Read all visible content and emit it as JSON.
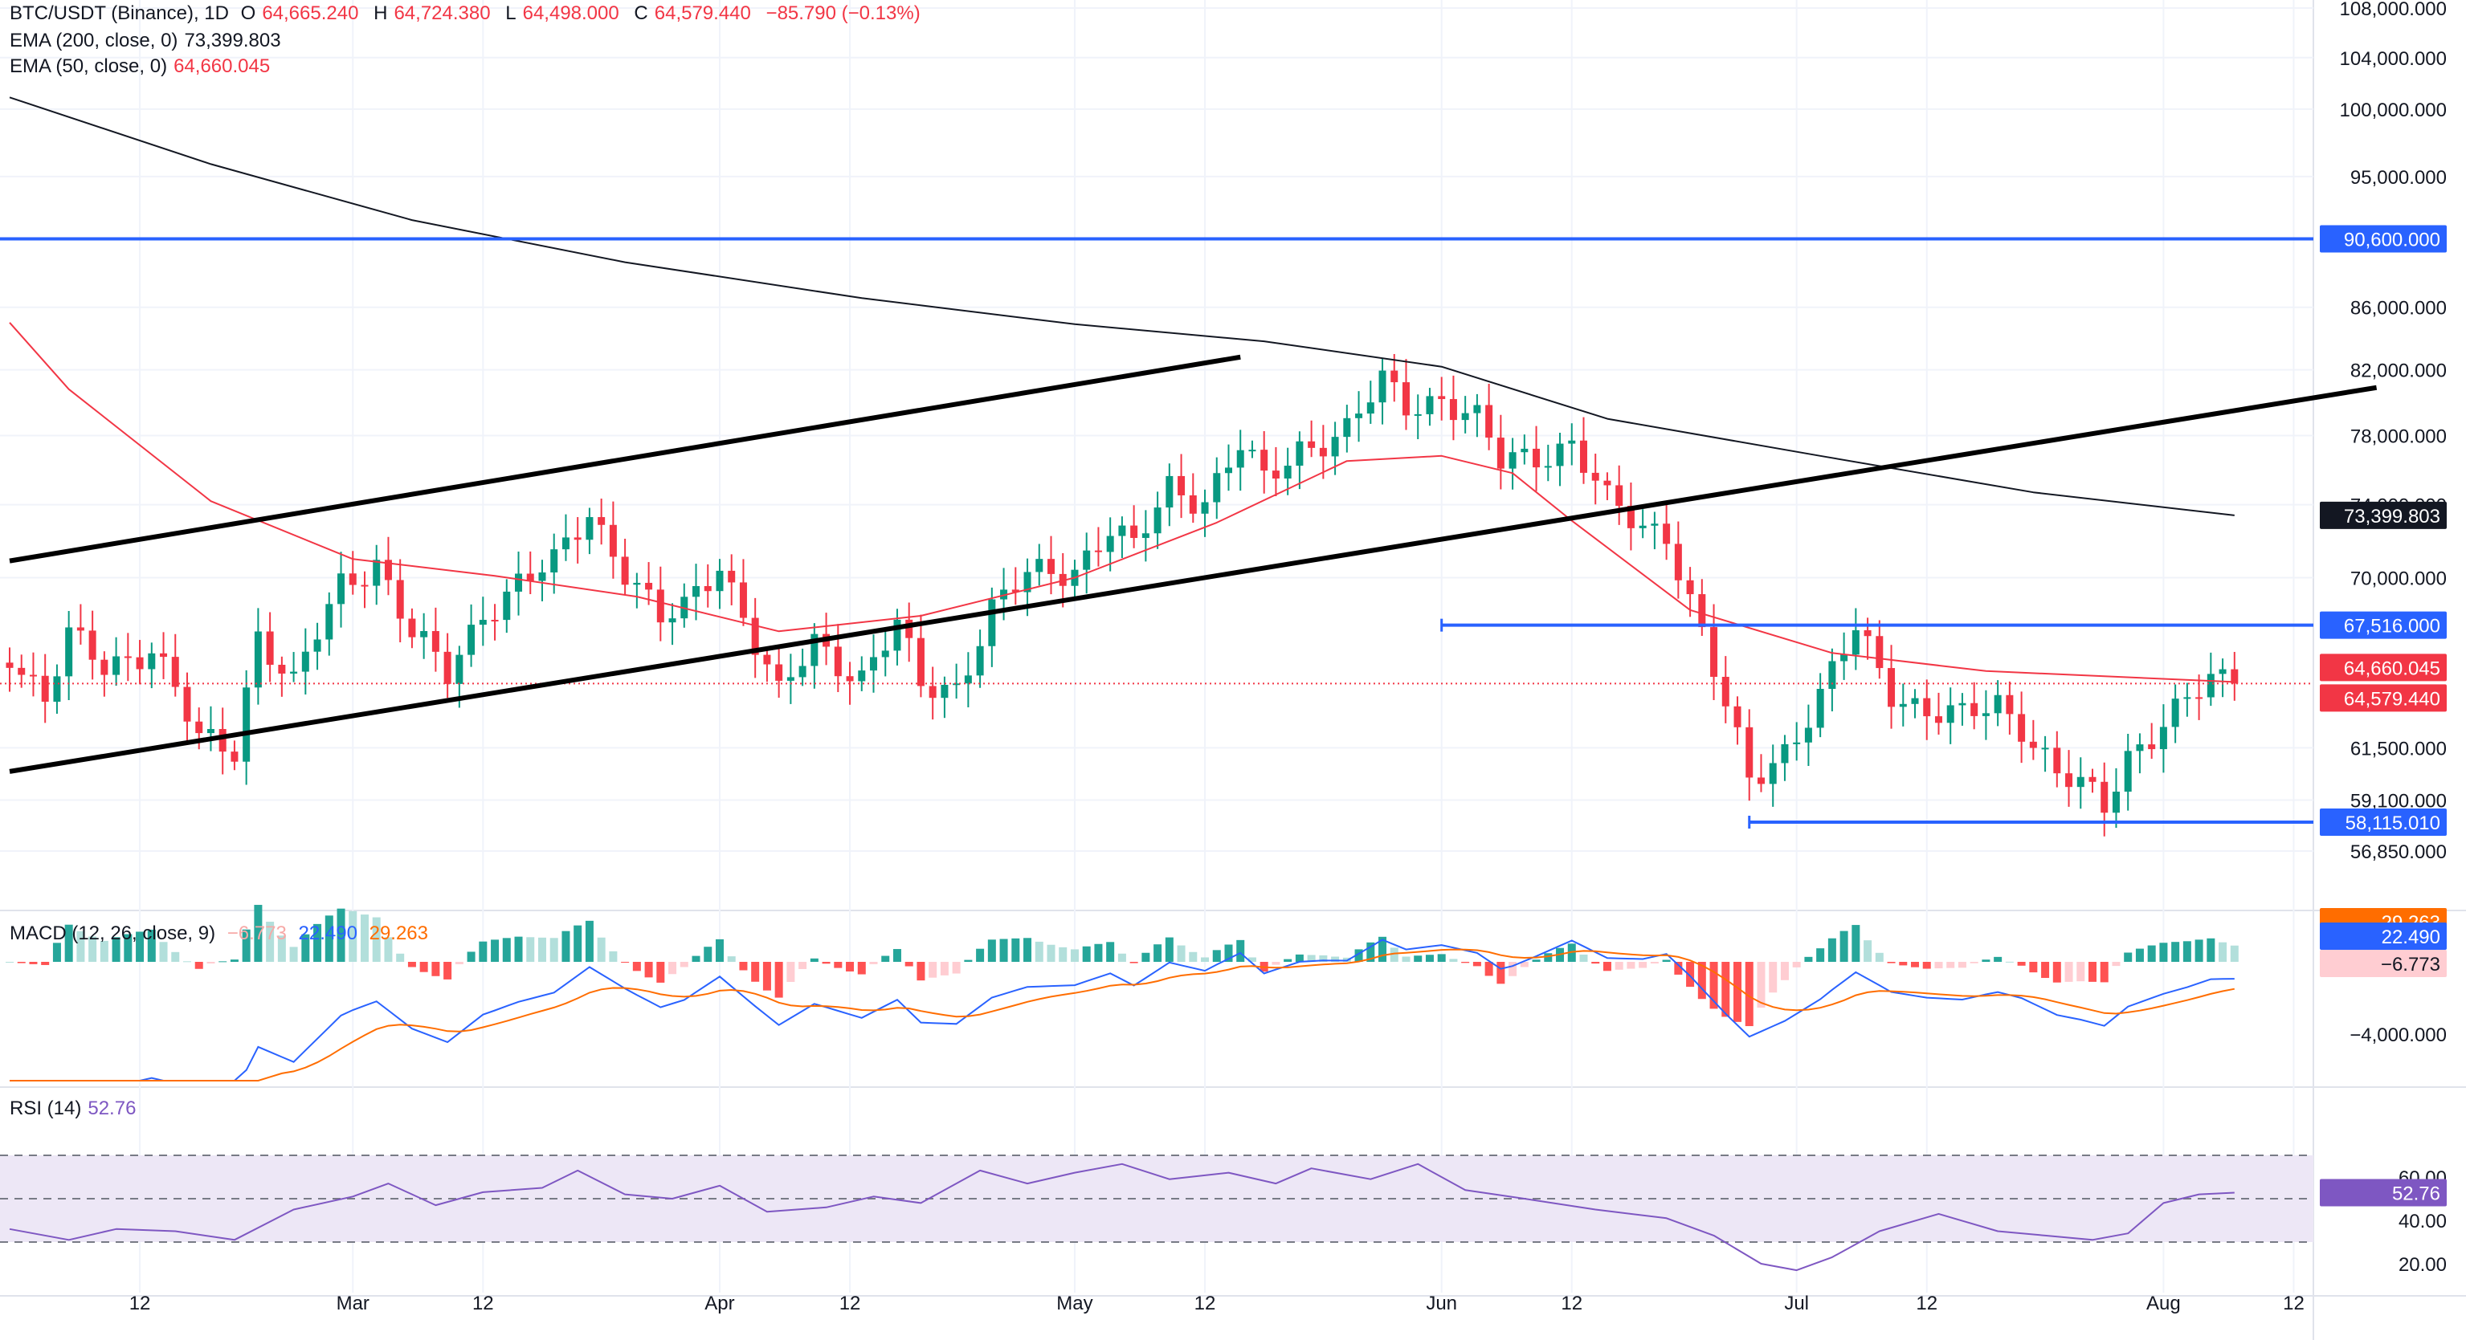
{
  "legend": {
    "symbol": "BTC/USDT (Binance), 1D",
    "o_label": "O",
    "o_value": "64,665.240",
    "h_label": "H",
    "h_value": "64,724.380",
    "l_label": "L",
    "l_value": "64,498.000",
    "c_label": "C",
    "c_value": "64,579.440",
    "change": "−85.790 (−0.13%)",
    "ema200_label": "EMA (200, close, 0)",
    "ema200_value": "73,399.803",
    "ema50_label": "EMA (50, close, 0)",
    "ema50_value": "64,660.045",
    "macd_label": "MACD (12, 26, close, 9)",
    "macd_hist": "−6.773",
    "macd_line": "22.490",
    "macd_signal": "29.263",
    "rsi_label": "RSI (14)",
    "rsi_value": "52.76"
  },
  "colors": {
    "up": "#089981",
    "down": "#f23645",
    "ema200": "#131722",
    "ema50": "#f23645",
    "hline": "#2962ff",
    "macd": "#2962ff",
    "signal": "#ff6d00",
    "rsi": "#7e57c2",
    "rsi_band": "#ede7f6",
    "grid": "#f0f3fa"
  },
  "chart_data": [
    {
      "type": "candlestick",
      "title": "BTC/USDT (Binance), 1D",
      "y_axis": {
        "scale": "log",
        "ylim": [
          56000,
          110000
        ],
        "tick_labels": [
          "108,000.000",
          "104,000.000",
          "100,000.000",
          "95,000.000",
          "86,000.000",
          "82,000.000",
          "78,000.000",
          "74,000.000",
          "70,000.000",
          "61,500.000",
          "59,100.000",
          "56,850.000"
        ],
        "tick_values": [
          108000,
          104000,
          100000,
          95000,
          86000,
          82000,
          78000,
          74000,
          70000,
          61500,
          59100,
          56850
        ]
      },
      "x_axis": {
        "tick_labels": [
          "12",
          "Mar",
          "12",
          "Apr",
          "12",
          "May",
          "12",
          "Jun",
          "12",
          "Jul",
          "12",
          "Aug",
          "12"
        ],
        "tick_dates": [
          "2024-02-12",
          "2024-03-01",
          "2024-03-12",
          "2024-04-01",
          "2024-04-12",
          "2024-05-01",
          "2024-05-12",
          "2024-06-01",
          "2024-06-12",
          "2024-07-01",
          "2024-07-12",
          "2024-08-01",
          "2024-08-12"
        ],
        "first_date": "2024-02-01",
        "last_date": "2024-08-07",
        "right_date": "2024-08-19"
      },
      "close_series": [
        {
          "date": "2024-02-01",
          "value": 66300
        },
        {
          "date": "2024-02-04",
          "value": 63800
        },
        {
          "date": "2024-02-06",
          "value": 66800
        },
        {
          "date": "2024-02-09",
          "value": 65400
        },
        {
          "date": "2024-02-13",
          "value": 66500
        },
        {
          "date": "2024-02-15",
          "value": 64200
        },
        {
          "date": "2024-02-17",
          "value": 61700
        },
        {
          "date": "2024-02-20",
          "value": 61500
        },
        {
          "date": "2024-02-22",
          "value": 67200
        },
        {
          "date": "2024-02-25",
          "value": 64400
        },
        {
          "date": "2024-02-29",
          "value": 69600
        },
        {
          "date": "2024-03-03",
          "value": 71000
        },
        {
          "date": "2024-03-06",
          "value": 67000
        },
        {
          "date": "2024-03-09",
          "value": 64900
        },
        {
          "date": "2024-03-12",
          "value": 68300
        },
        {
          "date": "2024-03-15",
          "value": 69700
        },
        {
          "date": "2024-03-18",
          "value": 70600
        },
        {
          "date": "2024-03-21",
          "value": 73700
        },
        {
          "date": "2024-03-24",
          "value": 70500
        },
        {
          "date": "2024-03-27",
          "value": 67600
        },
        {
          "date": "2024-03-29",
          "value": 68300
        },
        {
          "date": "2024-04-01",
          "value": 71000
        },
        {
          "date": "2024-04-04",
          "value": 66600
        },
        {
          "date": "2024-04-06",
          "value": 63800
        },
        {
          "date": "2024-04-09",
          "value": 66700
        },
        {
          "date": "2024-04-13",
          "value": 64900
        },
        {
          "date": "2024-04-16",
          "value": 67400
        },
        {
          "date": "2024-04-18",
          "value": 64400
        },
        {
          "date": "2024-04-21",
          "value": 64500
        },
        {
          "date": "2024-04-24",
          "value": 68300
        },
        {
          "date": "2024-04-27",
          "value": 70000
        },
        {
          "date": "2024-05-01",
          "value": 70600
        },
        {
          "date": "2024-05-04",
          "value": 72700
        },
        {
          "date": "2024-05-06",
          "value": 71400
        },
        {
          "date": "2024-05-09",
          "value": 75000
        },
        {
          "date": "2024-05-12",
          "value": 74400
        },
        {
          "date": "2024-05-15",
          "value": 77400
        },
        {
          "date": "2024-05-17",
          "value": 75100
        },
        {
          "date": "2024-05-20",
          "value": 77300
        },
        {
          "date": "2024-05-22",
          "value": 77900
        },
        {
          "date": "2024-05-24",
          "value": 78300
        },
        {
          "date": "2024-05-27",
          "value": 81100
        },
        {
          "date": "2024-05-29",
          "value": 79800
        },
        {
          "date": "2024-06-01",
          "value": 80400
        },
        {
          "date": "2024-06-04",
          "value": 78800
        },
        {
          "date": "2024-06-06",
          "value": 76300
        },
        {
          "date": "2024-06-09",
          "value": 76900
        },
        {
          "date": "2024-06-12",
          "value": 77600
        },
        {
          "date": "2024-06-15",
          "value": 74000
        },
        {
          "date": "2024-06-18",
          "value": 72700
        },
        {
          "date": "2024-06-20",
          "value": 72600
        },
        {
          "date": "2024-06-23",
          "value": 67000
        },
        {
          "date": "2024-06-25",
          "value": 63300
        },
        {
          "date": "2024-06-27",
          "value": 59900
        },
        {
          "date": "2024-06-30",
          "value": 61500
        },
        {
          "date": "2024-07-03",
          "value": 63900
        },
        {
          "date": "2024-07-06",
          "value": 67200
        },
        {
          "date": "2024-07-09",
          "value": 64300
        },
        {
          "date": "2024-07-12",
          "value": 63300
        },
        {
          "date": "2024-07-15",
          "value": 62800
        },
        {
          "date": "2024-07-18",
          "value": 63600
        },
        {
          "date": "2024-07-20",
          "value": 62700
        },
        {
          "date": "2024-07-23",
          "value": 60300
        },
        {
          "date": "2024-07-25",
          "value": 59600
        },
        {
          "date": "2024-07-27",
          "value": 58700
        },
        {
          "date": "2024-07-29",
          "value": 61200
        },
        {
          "date": "2024-08-01",
          "value": 62800
        },
        {
          "date": "2024-08-03",
          "value": 63600
        },
        {
          "date": "2024-08-05",
          "value": 64600
        },
        {
          "date": "2024-08-07",
          "value": 64579.44
        }
      ],
      "ema200": [
        {
          "date": "2024-02-01",
          "value": 100900
        },
        {
          "date": "2024-02-18",
          "value": 95900
        },
        {
          "date": "2024-03-06",
          "value": 91900
        },
        {
          "date": "2024-03-24",
          "value": 89000
        },
        {
          "date": "2024-04-13",
          "value": 86600
        },
        {
          "date": "2024-05-01",
          "value": 84900
        },
        {
          "date": "2024-05-17",
          "value": 83800
        },
        {
          "date": "2024-06-01",
          "value": 82200
        },
        {
          "date": "2024-06-15",
          "value": 79000
        },
        {
          "date": "2024-07-03",
          "value": 76800
        },
        {
          "date": "2024-07-21",
          "value": 74700
        },
        {
          "date": "2024-08-07",
          "value": 73399.803
        }
      ],
      "ema50": [
        {
          "date": "2024-02-01",
          "value": 85000
        },
        {
          "date": "2024-02-06",
          "value": 80800
        },
        {
          "date": "2024-02-18",
          "value": 74200
        },
        {
          "date": "2024-03-01",
          "value": 71000
        },
        {
          "date": "2024-03-13",
          "value": 70100
        },
        {
          "date": "2024-03-25",
          "value": 69000
        },
        {
          "date": "2024-04-06",
          "value": 67200
        },
        {
          "date": "2024-04-18",
          "value": 68000
        },
        {
          "date": "2024-05-01",
          "value": 70000
        },
        {
          "date": "2024-05-13",
          "value": 73000
        },
        {
          "date": "2024-05-24",
          "value": 76500
        },
        {
          "date": "2024-06-01",
          "value": 76800
        },
        {
          "date": "2024-06-07",
          "value": 75800
        },
        {
          "date": "2024-06-12",
          "value": 73100
        },
        {
          "date": "2024-06-22",
          "value": 68300
        },
        {
          "date": "2024-07-04",
          "value": 66100
        },
        {
          "date": "2024-07-17",
          "value": 65200
        },
        {
          "date": "2024-08-07",
          "value": 64660.045
        }
      ],
      "trendlines": [
        {
          "from": {
            "date": "2024-02-01",
            "value": 70900
          },
          "to": {
            "date": "2024-05-15",
            "value": 82800
          }
        },
        {
          "from": {
            "date": "2024-02-01",
            "value": 60400
          },
          "to": {
            "date": "2024-08-19",
            "value": 80900
          }
        }
      ],
      "horizontal_levels": [
        {
          "value": 90600,
          "label": "90,600.000",
          "from_date": "2024-02-01"
        },
        {
          "value": 67516,
          "label": "67,516.000",
          "from_date": "2024-06-01"
        },
        {
          "value": 58115.01,
          "label": "58,115.010",
          "from_date": "2024-06-27"
        }
      ],
      "price_labels": [
        {
          "value": 73399.803,
          "label": "73,399.803",
          "kind": "ema200"
        },
        {
          "value": 64660.045,
          "label": "64,660.045",
          "kind": "ema50"
        },
        {
          "value": 64579.44,
          "label": "64,579.440",
          "kind": "last"
        }
      ]
    },
    {
      "type": "bar+line",
      "title": "MACD (12, 26, close, 9)",
      "y_axis": {
        "tick_labels": [
          "−4,000.000"
        ],
        "tick_values": [
          -4000
        ]
      },
      "badges": [
        {
          "label": "29.263",
          "kind": "signal"
        },
        {
          "label": "22.490",
          "kind": "macd"
        },
        {
          "label": "−6.773",
          "kind": "hist"
        }
      ]
    },
    {
      "type": "line",
      "title": "RSI (14)",
      "y_axis": {
        "tick_labels": [
          "60.00",
          "40.00",
          "20.00"
        ],
        "tick_values": [
          60,
          40,
          20
        ],
        "band": [
          30,
          70
        ]
      },
      "last_value_label": "52.76",
      "series": [
        {
          "date": "2024-02-01",
          "value": 36
        },
        {
          "date": "2024-02-06",
          "value": 31
        },
        {
          "date": "2024-02-10",
          "value": 36
        },
        {
          "date": "2024-02-15",
          "value": 35
        },
        {
          "date": "2024-02-20",
          "value": 31
        },
        {
          "date": "2024-02-25",
          "value": 45
        },
        {
          "date": "2024-03-01",
          "value": 51
        },
        {
          "date": "2024-03-04",
          "value": 57
        },
        {
          "date": "2024-03-08",
          "value": 47
        },
        {
          "date": "2024-03-12",
          "value": 53
        },
        {
          "date": "2024-03-17",
          "value": 55
        },
        {
          "date": "2024-03-20",
          "value": 63
        },
        {
          "date": "2024-03-24",
          "value": 52
        },
        {
          "date": "2024-03-28",
          "value": 50
        },
        {
          "date": "2024-04-01",
          "value": 56
        },
        {
          "date": "2024-04-05",
          "value": 44
        },
        {
          "date": "2024-04-10",
          "value": 46
        },
        {
          "date": "2024-04-14",
          "value": 51
        },
        {
          "date": "2024-04-18",
          "value": 48
        },
        {
          "date": "2024-04-23",
          "value": 63
        },
        {
          "date": "2024-04-27",
          "value": 57
        },
        {
          "date": "2024-05-01",
          "value": 62
        },
        {
          "date": "2024-05-05",
          "value": 66
        },
        {
          "date": "2024-05-09",
          "value": 59
        },
        {
          "date": "2024-05-14",
          "value": 62
        },
        {
          "date": "2024-05-18",
          "value": 57
        },
        {
          "date": "2024-05-21",
          "value": 64
        },
        {
          "date": "2024-05-26",
          "value": 59
        },
        {
          "date": "2024-05-30",
          "value": 66
        },
        {
          "date": "2024-06-03",
          "value": 54
        },
        {
          "date": "2024-06-08",
          "value": 50
        },
        {
          "date": "2024-06-14",
          "value": 45
        },
        {
          "date": "2024-06-20",
          "value": 41
        },
        {
          "date": "2024-06-24",
          "value": 33
        },
        {
          "date": "2024-06-28",
          "value": 20
        },
        {
          "date": "2024-07-01",
          "value": 17
        },
        {
          "date": "2024-07-04",
          "value": 23
        },
        {
          "date": "2024-07-08",
          "value": 35
        },
        {
          "date": "2024-07-13",
          "value": 43
        },
        {
          "date": "2024-07-18",
          "value": 35
        },
        {
          "date": "2024-07-22",
          "value": 33
        },
        {
          "date": "2024-07-26",
          "value": 31
        },
        {
          "date": "2024-07-29",
          "value": 34
        },
        {
          "date": "2024-08-01",
          "value": 48
        },
        {
          "date": "2024-08-04",
          "value": 52
        },
        {
          "date": "2024-08-07",
          "value": 52.76
        }
      ]
    }
  ]
}
